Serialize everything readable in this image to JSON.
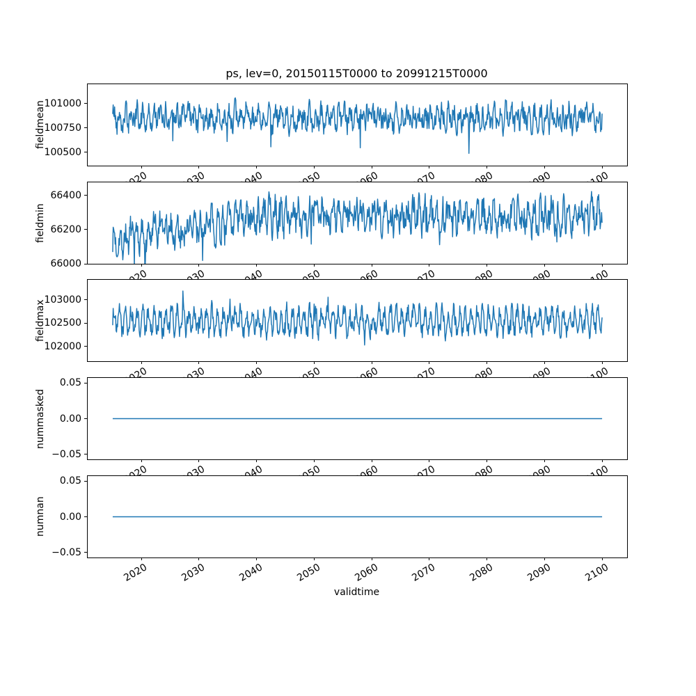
{
  "figure": {
    "title": "ps, lev=0, 20150115T0000 to 20991215T0000",
    "xlabel": "validtime",
    "background_color": "#ffffff",
    "line_color": "#1f77b4",
    "frame_color": "#000000"
  },
  "x_axis": {
    "label": "validtime",
    "tick_values": [
      2020,
      2030,
      2040,
      2050,
      2060,
      2070,
      2080,
      2090,
      2100
    ],
    "tick_labels": [
      "2020",
      "2030",
      "2040",
      "2050",
      "2060",
      "2070",
      "2080",
      "2090",
      "2100"
    ],
    "tick_rotation_deg": 30,
    "limits": [
      2010.7,
      2104.3
    ],
    "data_start": 2015.04,
    "data_end": 2099.96
  },
  "chart_data": [
    {
      "type": "line",
      "ylabel": "fieldmean",
      "ytick_values": [
        100500,
        100750,
        101000
      ],
      "ytick_labels": [
        "100500",
        "100750",
        "101000"
      ],
      "ylim": [
        100364,
        101200
      ],
      "n_points": 1019,
      "cadence": "monthly",
      "line_color": "#1f77b4",
      "stats": {
        "approx_mean": 100855,
        "approx_min": 100400,
        "approx_max": 101150
      },
      "synthesis": {
        "kind": "noisy",
        "seed": 42,
        "mean": 100855,
        "season_amp": 75,
        "noise_amp": 105,
        "persist": 0.3,
        "spike_prob": 0.012,
        "spike_amp": 280,
        "spike_sign": -1,
        "trend_delta": 0,
        "trend_until": 2015
      }
    },
    {
      "type": "line",
      "ylabel": "fieldmin",
      "ytick_values": [
        66000,
        66200,
        66400
      ],
      "ytick_labels": [
        "66000",
        "66200",
        "66400"
      ],
      "ylim": [
        66000,
        66477
      ],
      "n_points": 1019,
      "cadence": "monthly",
      "line_color": "#1f77b4",
      "stats": {
        "approx_start_mean": 66130,
        "approx_end_mean": 66290,
        "approx_min": 66025,
        "approx_max": 66460
      },
      "synthesis": {
        "kind": "noisy",
        "seed": 7,
        "mean": 66135,
        "season_amp": 48,
        "noise_amp": 80,
        "persist": 0.4,
        "spike_prob": 0.01,
        "spike_amp": 150,
        "spike_sign": -1,
        "trend_delta": 150,
        "trend_until": 2043
      }
    },
    {
      "type": "line",
      "ylabel": "fieldmax",
      "ytick_values": [
        102000,
        102500,
        103000
      ],
      "ytick_labels": [
        "102000",
        "102500",
        "103000"
      ],
      "ylim": [
        101686,
        103433
      ],
      "n_points": 1019,
      "cadence": "monthly",
      "line_color": "#1f77b4",
      "stats": {
        "approx_mean": 102550,
        "approx_min": 101880,
        "approx_max": 103390
      },
      "synthesis": {
        "kind": "noisy",
        "seed": 1234,
        "mean": 102550,
        "season_amp": 235,
        "noise_amp": 175,
        "persist": 0.25,
        "spike_prob": 0.012,
        "spike_amp": 330,
        "spike_sign": 0,
        "trend_delta": 0,
        "trend_until": 2015
      }
    },
    {
      "type": "line",
      "ylabel": "nummasked",
      "ytick_values": [
        -0.05,
        0.0,
        0.05
      ],
      "ytick_labels": [
        "−0.05",
        "0.00",
        "0.05"
      ],
      "ylim": [
        -0.0571,
        0.0571
      ],
      "n_points": 1019,
      "cadence": "monthly",
      "line_color": "#1f77b4",
      "stats": {
        "constant_value": 0.0
      },
      "synthesis": {
        "kind": "constant",
        "value": 0.0
      }
    },
    {
      "type": "line",
      "ylabel": "numnan",
      "ytick_values": [
        -0.05,
        0.0,
        0.05
      ],
      "ytick_labels": [
        "−0.05",
        "0.00",
        "0.05"
      ],
      "ylim": [
        -0.0571,
        0.0571
      ],
      "n_points": 1019,
      "cadence": "monthly",
      "line_color": "#1f77b4",
      "stats": {
        "constant_value": 0.0
      },
      "synthesis": {
        "kind": "constant",
        "value": 0.0
      }
    }
  ]
}
